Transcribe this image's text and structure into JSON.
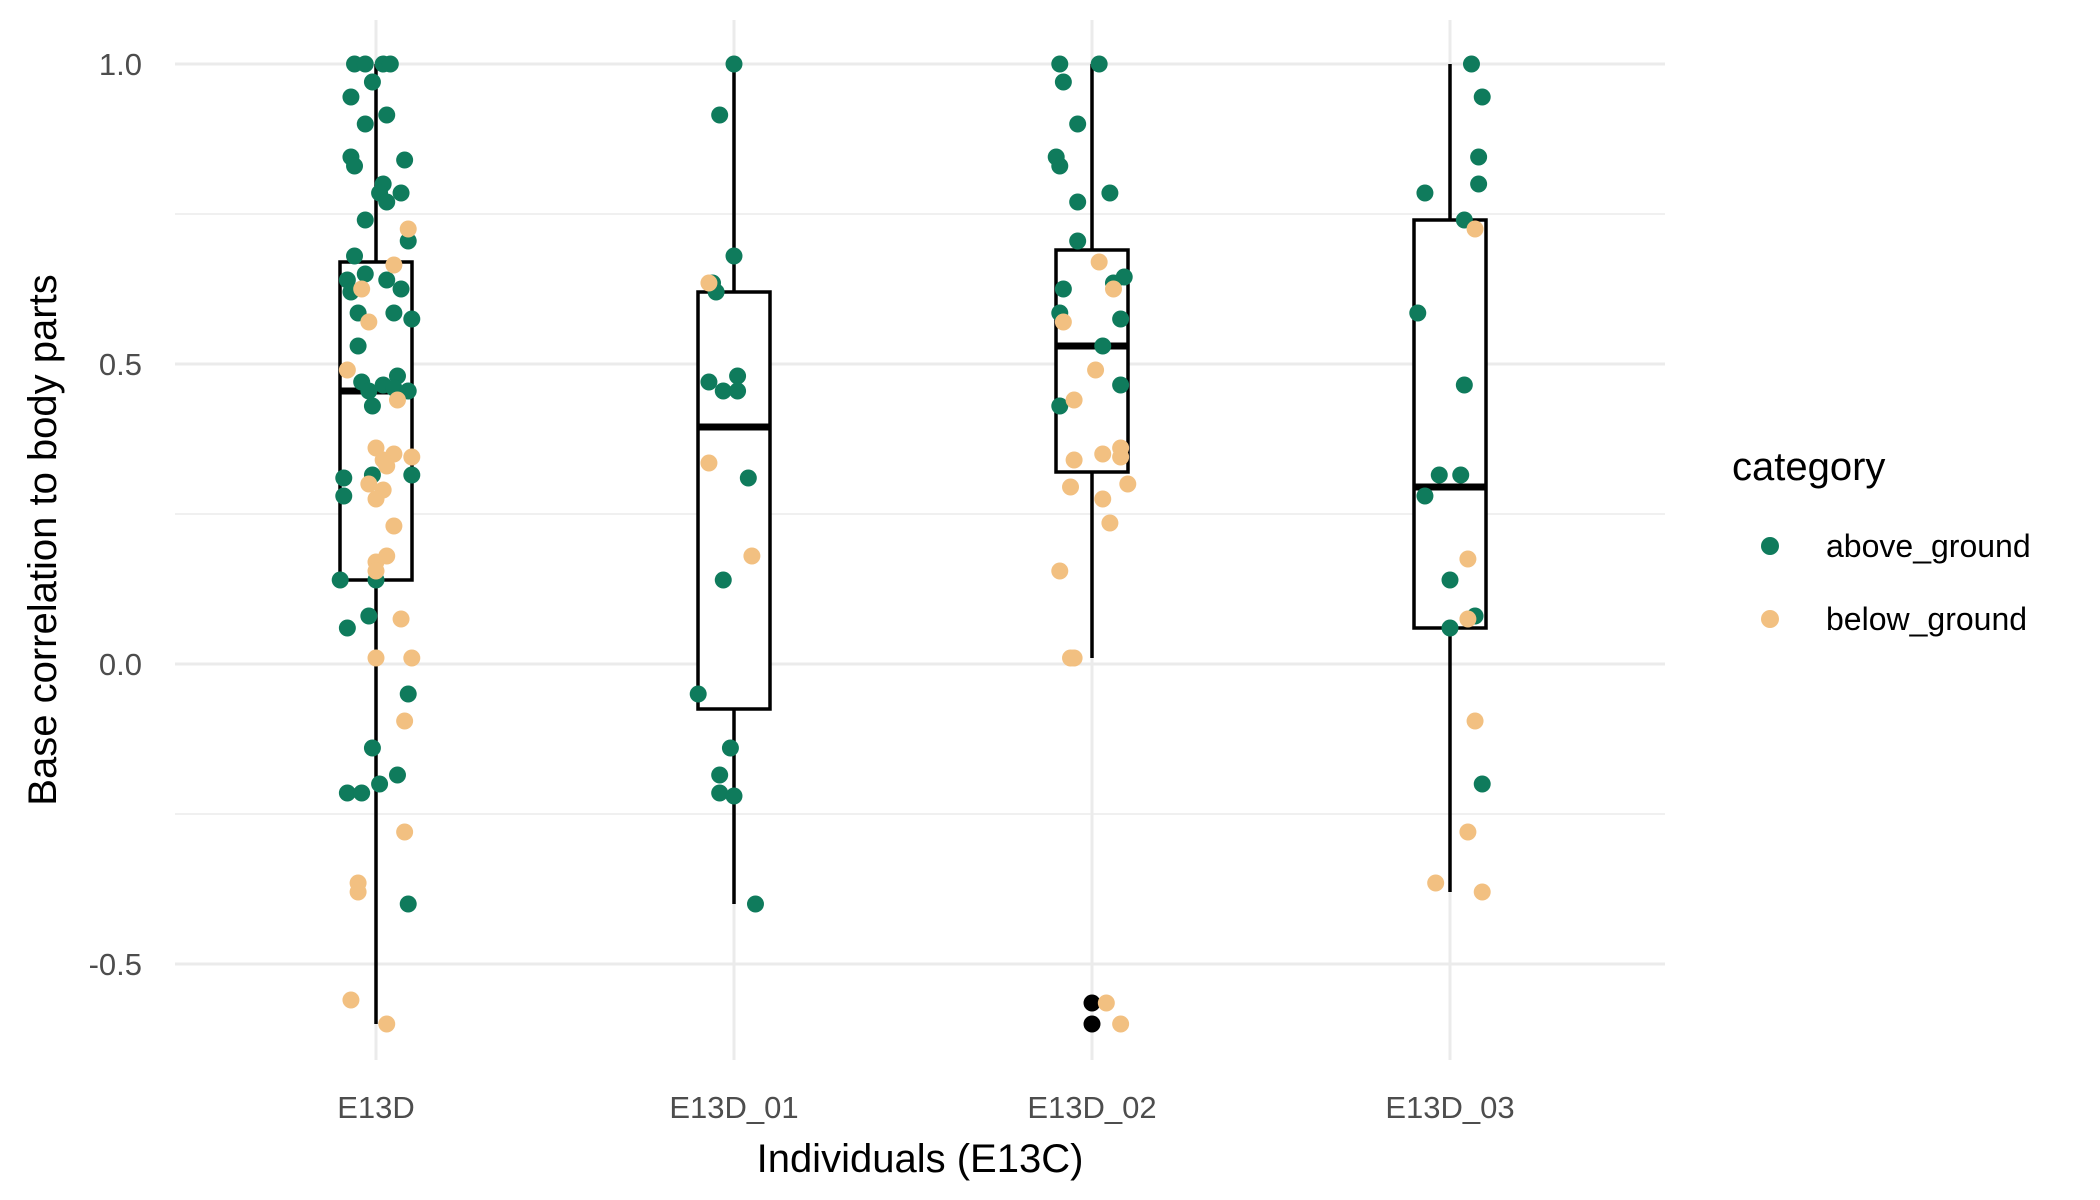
{
  "chart_data": {
    "type": "boxplot",
    "xlabel": "Individuals (E13C)",
    "ylabel": "Base correlation to body parts",
    "ylim": [
      -0.66,
      1.04
    ],
    "yticks": [
      -0.5,
      0.0,
      0.5,
      1.0
    ],
    "ytick_labels": [
      "-0.5",
      "0.0",
      "0.5",
      "1.0"
    ],
    "categories": [
      "E13D",
      "E13D_01",
      "E13D_02",
      "E13D_03"
    ],
    "grid": true,
    "legend": {
      "title": "category",
      "position": "right",
      "entries": [
        {
          "name": "above_ground",
          "color": "#0f7b5c"
        },
        {
          "name": "below_ground",
          "color": "#f2c081"
        }
      ]
    },
    "outlier_color": "#000000",
    "boxes": [
      {
        "category": "E13D",
        "q1": 0.14,
        "median": 0.455,
        "q3": 0.67,
        "whisker_low": -0.6,
        "whisker_high": 1.0,
        "outliers": []
      },
      {
        "category": "E13D_01",
        "q1": -0.075,
        "median": 0.395,
        "q3": 0.62,
        "whisker_low": -0.4,
        "whisker_high": 1.0,
        "outliers": []
      },
      {
        "category": "E13D_02",
        "q1": 0.32,
        "median": 0.53,
        "q3": 0.69,
        "whisker_low": 0.01,
        "whisker_high": 1.0,
        "outliers": [
          -0.565,
          -0.6
        ]
      },
      {
        "category": "E13D_03",
        "q1": 0.06,
        "median": 0.295,
        "q3": 0.74,
        "whisker_low": -0.38,
        "whisker_high": 1.0,
        "outliers": []
      }
    ],
    "series": [
      {
        "name": "above_ground",
        "points": [
          {
            "cat": "E13D",
            "jitter": -0.06,
            "y": 1.0
          },
          {
            "cat": "E13D",
            "jitter": -0.03,
            "y": 1.0
          },
          {
            "cat": "E13D",
            "jitter": 0.02,
            "y": 1.0
          },
          {
            "cat": "E13D",
            "jitter": 0.04,
            "y": 1.0
          },
          {
            "cat": "E13D",
            "jitter": -0.01,
            "y": 0.97
          },
          {
            "cat": "E13D",
            "jitter": -0.07,
            "y": 0.945
          },
          {
            "cat": "E13D",
            "jitter": 0.03,
            "y": 0.915
          },
          {
            "cat": "E13D",
            "jitter": -0.03,
            "y": 0.9
          },
          {
            "cat": "E13D",
            "jitter": -0.07,
            "y": 0.845
          },
          {
            "cat": "E13D",
            "jitter": 0.08,
            "y": 0.84
          },
          {
            "cat": "E13D",
            "jitter": -0.06,
            "y": 0.83
          },
          {
            "cat": "E13D",
            "jitter": 0.02,
            "y": 0.8
          },
          {
            "cat": "E13D",
            "jitter": 0.07,
            "y": 0.785
          },
          {
            "cat": "E13D",
            "jitter": 0.01,
            "y": 0.785
          },
          {
            "cat": "E13D",
            "jitter": 0.03,
            "y": 0.77
          },
          {
            "cat": "E13D",
            "jitter": -0.03,
            "y": 0.74
          },
          {
            "cat": "E13D",
            "jitter": 0.09,
            "y": 0.705
          },
          {
            "cat": "E13D",
            "jitter": -0.06,
            "y": 0.68
          },
          {
            "cat": "E13D",
            "jitter": -0.03,
            "y": 0.65
          },
          {
            "cat": "E13D",
            "jitter": -0.08,
            "y": 0.64
          },
          {
            "cat": "E13D",
            "jitter": 0.03,
            "y": 0.64
          },
          {
            "cat": "E13D",
            "jitter": 0.07,
            "y": 0.625
          },
          {
            "cat": "E13D",
            "jitter": -0.07,
            "y": 0.62
          },
          {
            "cat": "E13D",
            "jitter": -0.05,
            "y": 0.585
          },
          {
            "cat": "E13D",
            "jitter": 0.05,
            "y": 0.585
          },
          {
            "cat": "E13D",
            "jitter": 0.1,
            "y": 0.575
          },
          {
            "cat": "E13D",
            "jitter": -0.05,
            "y": 0.53
          },
          {
            "cat": "E13D",
            "jitter": 0.06,
            "y": 0.48
          },
          {
            "cat": "E13D",
            "jitter": -0.04,
            "y": 0.47
          },
          {
            "cat": "E13D",
            "jitter": 0.02,
            "y": 0.465
          },
          {
            "cat": "E13D",
            "jitter": 0.05,
            "y": 0.46
          },
          {
            "cat": "E13D",
            "jitter": -0.02,
            "y": 0.455
          },
          {
            "cat": "E13D",
            "jitter": 0.09,
            "y": 0.455
          },
          {
            "cat": "E13D",
            "jitter": -0.01,
            "y": 0.43
          },
          {
            "cat": "E13D",
            "jitter": -0.01,
            "y": 0.315
          },
          {
            "cat": "E13D",
            "jitter": 0.1,
            "y": 0.315
          },
          {
            "cat": "E13D",
            "jitter": -0.09,
            "y": 0.31
          },
          {
            "cat": "E13D",
            "jitter": -0.09,
            "y": 0.28
          },
          {
            "cat": "E13D",
            "jitter": -0.1,
            "y": 0.14
          },
          {
            "cat": "E13D",
            "jitter": 0.0,
            "y": 0.14
          },
          {
            "cat": "E13D",
            "jitter": -0.02,
            "y": 0.08
          },
          {
            "cat": "E13D",
            "jitter": -0.08,
            "y": 0.06
          },
          {
            "cat": "E13D",
            "jitter": 0.09,
            "y": -0.05
          },
          {
            "cat": "E13D",
            "jitter": -0.01,
            "y": -0.14
          },
          {
            "cat": "E13D",
            "jitter": 0.06,
            "y": -0.185
          },
          {
            "cat": "E13D",
            "jitter": 0.01,
            "y": -0.2
          },
          {
            "cat": "E13D",
            "jitter": -0.08,
            "y": -0.215
          },
          {
            "cat": "E13D",
            "jitter": -0.04,
            "y": -0.215
          },
          {
            "cat": "E13D",
            "jitter": 0.09,
            "y": -0.4
          },
          {
            "cat": "E13D_01",
            "jitter": 0.0,
            "y": 1.0
          },
          {
            "cat": "E13D_01",
            "jitter": -0.04,
            "y": 0.915
          },
          {
            "cat": "E13D_01",
            "jitter": 0.0,
            "y": 0.68
          },
          {
            "cat": "E13D_01",
            "jitter": -0.06,
            "y": 0.635
          },
          {
            "cat": "E13D_01",
            "jitter": -0.05,
            "y": 0.62
          },
          {
            "cat": "E13D_01",
            "jitter": 0.01,
            "y": 0.48
          },
          {
            "cat": "E13D_01",
            "jitter": -0.07,
            "y": 0.47
          },
          {
            "cat": "E13D_01",
            "jitter": -0.03,
            "y": 0.455
          },
          {
            "cat": "E13D_01",
            "jitter": 0.01,
            "y": 0.455
          },
          {
            "cat": "E13D_01",
            "jitter": 0.04,
            "y": 0.31
          },
          {
            "cat": "E13D_01",
            "jitter": -0.03,
            "y": 0.14
          },
          {
            "cat": "E13D_01",
            "jitter": -0.1,
            "y": -0.05
          },
          {
            "cat": "E13D_01",
            "jitter": -0.01,
            "y": -0.14
          },
          {
            "cat": "E13D_01",
            "jitter": -0.04,
            "y": -0.185
          },
          {
            "cat": "E13D_01",
            "jitter": -0.04,
            "y": -0.215
          },
          {
            "cat": "E13D_01",
            "jitter": 0.0,
            "y": -0.22
          },
          {
            "cat": "E13D_01",
            "jitter": 0.06,
            "y": -0.4
          },
          {
            "cat": "E13D_02",
            "jitter": -0.09,
            "y": 1.0
          },
          {
            "cat": "E13D_02",
            "jitter": 0.02,
            "y": 1.0
          },
          {
            "cat": "E13D_02",
            "jitter": -0.08,
            "y": 0.97
          },
          {
            "cat": "E13D_02",
            "jitter": -0.04,
            "y": 0.9
          },
          {
            "cat": "E13D_02",
            "jitter": -0.1,
            "y": 0.845
          },
          {
            "cat": "E13D_02",
            "jitter": -0.09,
            "y": 0.83
          },
          {
            "cat": "E13D_02",
            "jitter": 0.05,
            "y": 0.785
          },
          {
            "cat": "E13D_02",
            "jitter": -0.04,
            "y": 0.77
          },
          {
            "cat": "E13D_02",
            "jitter": -0.04,
            "y": 0.705
          },
          {
            "cat": "E13D_02",
            "jitter": 0.09,
            "y": 0.645
          },
          {
            "cat": "E13D_02",
            "jitter": 0.06,
            "y": 0.635
          },
          {
            "cat": "E13D_02",
            "jitter": -0.08,
            "y": 0.625
          },
          {
            "cat": "E13D_02",
            "jitter": -0.09,
            "y": 0.585
          },
          {
            "cat": "E13D_02",
            "jitter": 0.08,
            "y": 0.575
          },
          {
            "cat": "E13D_02",
            "jitter": 0.03,
            "y": 0.53
          },
          {
            "cat": "E13D_02",
            "jitter": 0.08,
            "y": 0.465
          },
          {
            "cat": "E13D_02",
            "jitter": -0.09,
            "y": 0.43
          },
          {
            "cat": "E13D_03",
            "jitter": 0.06,
            "y": 1.0
          },
          {
            "cat": "E13D_03",
            "jitter": 0.09,
            "y": 0.945
          },
          {
            "cat": "E13D_03",
            "jitter": 0.08,
            "y": 0.845
          },
          {
            "cat": "E13D_03",
            "jitter": 0.08,
            "y": 0.8
          },
          {
            "cat": "E13D_03",
            "jitter": -0.07,
            "y": 0.785
          },
          {
            "cat": "E13D_03",
            "jitter": 0.04,
            "y": 0.74
          },
          {
            "cat": "E13D_03",
            "jitter": -0.09,
            "y": 0.585
          },
          {
            "cat": "E13D_03",
            "jitter": 0.04,
            "y": 0.465
          },
          {
            "cat": "E13D_03",
            "jitter": -0.03,
            "y": 0.315
          },
          {
            "cat": "E13D_03",
            "jitter": 0.03,
            "y": 0.315
          },
          {
            "cat": "E13D_03",
            "jitter": -0.07,
            "y": 0.28
          },
          {
            "cat": "E13D_03",
            "jitter": 0.0,
            "y": 0.14
          },
          {
            "cat": "E13D_03",
            "jitter": 0.07,
            "y": 0.08
          },
          {
            "cat": "E13D_03",
            "jitter": 0.0,
            "y": 0.06
          },
          {
            "cat": "E13D_03",
            "jitter": 0.09,
            "y": -0.2
          }
        ]
      },
      {
        "name": "below_ground",
        "points": [
          {
            "cat": "E13D",
            "jitter": 0.09,
            "y": 0.725
          },
          {
            "cat": "E13D",
            "jitter": 0.05,
            "y": 0.665
          },
          {
            "cat": "E13D",
            "jitter": -0.04,
            "y": 0.625
          },
          {
            "cat": "E13D",
            "jitter": -0.02,
            "y": 0.57
          },
          {
            "cat": "E13D",
            "jitter": -0.08,
            "y": 0.49
          },
          {
            "cat": "E13D",
            "jitter": 0.06,
            "y": 0.44
          },
          {
            "cat": "E13D",
            "jitter": 0.0,
            "y": 0.36
          },
          {
            "cat": "E13D",
            "jitter": 0.05,
            "y": 0.35
          },
          {
            "cat": "E13D",
            "jitter": 0.1,
            "y": 0.345
          },
          {
            "cat": "E13D",
            "jitter": 0.02,
            "y": 0.34
          },
          {
            "cat": "E13D",
            "jitter": 0.03,
            "y": 0.33
          },
          {
            "cat": "E13D",
            "jitter": -0.02,
            "y": 0.3
          },
          {
            "cat": "E13D",
            "jitter": 0.02,
            "y": 0.29
          },
          {
            "cat": "E13D",
            "jitter": 0.0,
            "y": 0.275
          },
          {
            "cat": "E13D",
            "jitter": 0.05,
            "y": 0.23
          },
          {
            "cat": "E13D",
            "jitter": 0.03,
            "y": 0.18
          },
          {
            "cat": "E13D",
            "jitter": 0.0,
            "y": 0.17
          },
          {
            "cat": "E13D",
            "jitter": 0.0,
            "y": 0.155
          },
          {
            "cat": "E13D",
            "jitter": 0.07,
            "y": 0.075
          },
          {
            "cat": "E13D",
            "jitter": 0.0,
            "y": 0.01
          },
          {
            "cat": "E13D",
            "jitter": 0.1,
            "y": 0.01
          },
          {
            "cat": "E13D",
            "jitter": 0.08,
            "y": -0.095
          },
          {
            "cat": "E13D",
            "jitter": 0.08,
            "y": -0.28
          },
          {
            "cat": "E13D",
            "jitter": -0.05,
            "y": -0.365
          },
          {
            "cat": "E13D",
            "jitter": -0.05,
            "y": -0.38
          },
          {
            "cat": "E13D",
            "jitter": -0.07,
            "y": -0.56
          },
          {
            "cat": "E13D",
            "jitter": 0.03,
            "y": -0.6
          },
          {
            "cat": "E13D_01",
            "jitter": -0.07,
            "y": 0.635
          },
          {
            "cat": "E13D_01",
            "jitter": -0.07,
            "y": 0.335
          },
          {
            "cat": "E13D_01",
            "jitter": 0.05,
            "y": 0.18
          },
          {
            "cat": "E13D_02",
            "jitter": 0.02,
            "y": 0.67
          },
          {
            "cat": "E13D_02",
            "jitter": 0.06,
            "y": 0.625
          },
          {
            "cat": "E13D_02",
            "jitter": -0.08,
            "y": 0.57
          },
          {
            "cat": "E13D_02",
            "jitter": 0.01,
            "y": 0.49
          },
          {
            "cat": "E13D_02",
            "jitter": -0.05,
            "y": 0.44
          },
          {
            "cat": "E13D_02",
            "jitter": 0.08,
            "y": 0.36
          },
          {
            "cat": "E13D_02",
            "jitter": 0.03,
            "y": 0.35
          },
          {
            "cat": "E13D_02",
            "jitter": 0.08,
            "y": 0.345
          },
          {
            "cat": "E13D_02",
            "jitter": -0.05,
            "y": 0.34
          },
          {
            "cat": "E13D_02",
            "jitter": 0.1,
            "y": 0.3
          },
          {
            "cat": "E13D_02",
            "jitter": -0.06,
            "y": 0.295
          },
          {
            "cat": "E13D_02",
            "jitter": 0.03,
            "y": 0.275
          },
          {
            "cat": "E13D_02",
            "jitter": 0.05,
            "y": 0.235
          },
          {
            "cat": "E13D_02",
            "jitter": -0.09,
            "y": 0.155
          },
          {
            "cat": "E13D_02",
            "jitter": -0.06,
            "y": 0.01
          },
          {
            "cat": "E13D_02",
            "jitter": -0.05,
            "y": 0.01
          },
          {
            "cat": "E13D_02",
            "jitter": 0.04,
            "y": -0.565
          },
          {
            "cat": "E13D_02",
            "jitter": 0.08,
            "y": -0.6
          },
          {
            "cat": "E13D_03",
            "jitter": 0.07,
            "y": 0.725
          },
          {
            "cat": "E13D_03",
            "jitter": 0.05,
            "y": 0.175
          },
          {
            "cat": "E13D_03",
            "jitter": 0.05,
            "y": 0.075
          },
          {
            "cat": "E13D_03",
            "jitter": 0.07,
            "y": -0.095
          },
          {
            "cat": "E13D_03",
            "jitter": 0.05,
            "y": -0.28
          },
          {
            "cat": "E13D_03",
            "jitter": -0.04,
            "y": -0.365
          },
          {
            "cat": "E13D_03",
            "jitter": 0.09,
            "y": -0.38
          }
        ]
      }
    ]
  }
}
